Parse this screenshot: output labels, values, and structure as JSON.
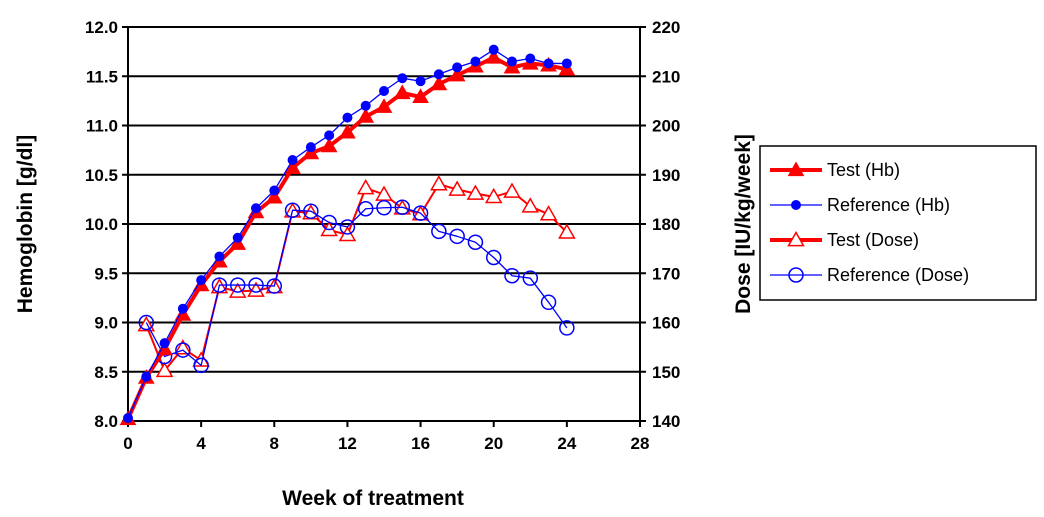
{
  "chart_data": {
    "type": "line",
    "xlabel": "Week of treatment",
    "ylabel": "Hemoglobin [g/dl]",
    "y2label": "Dose [IU/kg/week]",
    "xlim": [
      0,
      28
    ],
    "ylim": [
      8.0,
      12.0
    ],
    "y2lim": [
      140,
      220
    ],
    "xticks": [
      "0",
      "4",
      "8",
      "12",
      "16",
      "20",
      "24",
      "28"
    ],
    "yticks": [
      "8.0",
      "8.5",
      "9.0",
      "9.5",
      "10.0",
      "10.5",
      "11.0",
      "11.5",
      "12.0"
    ],
    "y2ticks": [
      "140",
      "150",
      "160",
      "170",
      "180",
      "190",
      "200",
      "210",
      "220"
    ],
    "grid": "horizontal",
    "legend_position": "right",
    "series": [
      {
        "name": "Test (Hb)",
        "axis": "left",
        "color": "#ff0000",
        "marker": "filled-triangle",
        "x": [
          0,
          1,
          2,
          3,
          4,
          5,
          6,
          7,
          8,
          9,
          10,
          11,
          12,
          13,
          14,
          15,
          16,
          17,
          18,
          19,
          20,
          21,
          22,
          23,
          24
        ],
        "values": [
          8.02,
          8.44,
          8.73,
          9.08,
          9.38,
          9.62,
          9.8,
          10.12,
          10.27,
          10.57,
          10.72,
          10.79,
          10.93,
          11.09,
          11.19,
          11.33,
          11.29,
          11.42,
          11.51,
          11.6,
          11.69,
          11.59,
          11.63,
          11.61,
          11.57
        ]
      },
      {
        "name": "Reference (Hb)",
        "axis": "left",
        "color": "#0000ff",
        "marker": "filled-circle",
        "x": [
          0,
          1,
          2,
          3,
          4,
          5,
          6,
          7,
          8,
          9,
          10,
          11,
          12,
          13,
          14,
          15,
          16,
          17,
          18,
          19,
          20,
          21,
          22,
          23,
          24
        ],
        "values": [
          8.03,
          8.45,
          8.79,
          9.14,
          9.43,
          9.67,
          9.86,
          10.16,
          10.34,
          10.65,
          10.78,
          10.9,
          11.08,
          11.2,
          11.35,
          11.48,
          11.45,
          11.52,
          11.59,
          11.65,
          11.77,
          11.65,
          11.68,
          11.63,
          11.63
        ]
      },
      {
        "name": "Test (Dose)",
        "axis": "right",
        "color": "#ff0000",
        "marker": "open-triangle",
        "x": [
          1,
          2,
          3,
          4,
          5,
          6,
          7,
          8,
          9,
          10,
          11,
          12,
          13,
          14,
          15,
          16,
          17,
          18,
          19,
          20,
          21,
          22,
          23,
          24
        ],
        "values": [
          159.5,
          150.2,
          154.8,
          152.3,
          167.2,
          166.3,
          166.5,
          167.2,
          182.6,
          182.2,
          178.8,
          177.8,
          187.3,
          186.0,
          183.2,
          182.0,
          188.1,
          187.0,
          186.2,
          185.5,
          186.6,
          183.6,
          182.0,
          178.3
        ]
      },
      {
        "name": "Reference (Dose)",
        "axis": "right",
        "color": "#0000ff",
        "marker": "open-circle",
        "x": [
          1,
          2,
          3,
          4,
          5,
          6,
          7,
          8,
          9,
          10,
          11,
          12,
          13,
          14,
          15,
          16,
          17,
          18,
          19,
          20,
          21,
          22,
          23,
          24
        ],
        "values": [
          160.0,
          153.1,
          154.4,
          151.3,
          167.6,
          167.6,
          167.6,
          167.4,
          182.8,
          182.6,
          180.3,
          179.4,
          183.1,
          183.3,
          183.4,
          182.2,
          178.5,
          177.5,
          176.3,
          173.2,
          169.5,
          169.0,
          164.1,
          158.9
        ]
      }
    ]
  }
}
